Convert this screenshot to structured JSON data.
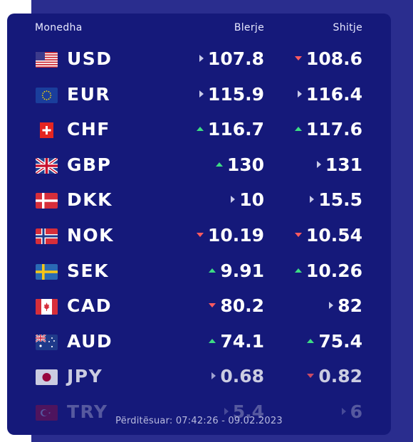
{
  "header": {
    "currency": "Monedha",
    "buy": "Blerje",
    "sell": "Shitje"
  },
  "rates": [
    {
      "code": "USD",
      "flag": "us-flag-icon",
      "buy": "107.8",
      "buy_trend": "same",
      "sell": "108.6",
      "sell_trend": "down"
    },
    {
      "code": "EUR",
      "flag": "eu-flag-icon",
      "buy": "115.9",
      "buy_trend": "same",
      "sell": "116.4",
      "sell_trend": "same"
    },
    {
      "code": "CHF",
      "flag": "ch-flag-icon",
      "buy": "116.7",
      "buy_trend": "up",
      "sell": "117.6",
      "sell_trend": "up"
    },
    {
      "code": "GBP",
      "flag": "gb-flag-icon",
      "buy": "130",
      "buy_trend": "up",
      "sell": "131",
      "sell_trend": "same"
    },
    {
      "code": "DKK",
      "flag": "dk-flag-icon",
      "buy": "10",
      "buy_trend": "same",
      "sell": "15.5",
      "sell_trend": "same"
    },
    {
      "code": "NOK",
      "flag": "no-flag-icon",
      "buy": "10.19",
      "buy_trend": "down",
      "sell": "10.54",
      "sell_trend": "down"
    },
    {
      "code": "SEK",
      "flag": "se-flag-icon",
      "buy": "9.91",
      "buy_trend": "up",
      "sell": "10.26",
      "sell_trend": "up"
    },
    {
      "code": "CAD",
      "flag": "ca-flag-icon",
      "buy": "80.2",
      "buy_trend": "down",
      "sell": "82",
      "sell_trend": "same"
    },
    {
      "code": "AUD",
      "flag": "au-flag-icon",
      "buy": "74.1",
      "buy_trend": "up",
      "sell": "75.4",
      "sell_trend": "up"
    },
    {
      "code": "JPY",
      "flag": "jp-flag-icon",
      "buy": "0.68",
      "buy_trend": "same",
      "sell": "0.82",
      "sell_trend": "down"
    },
    {
      "code": "TRY",
      "flag": "tr-flag-icon",
      "buy": "5.4",
      "buy_trend": "same",
      "sell": "6",
      "sell_trend": "same"
    }
  ],
  "footer": {
    "updated": "Përditësuar: 07:42:26 - 09.02.2023"
  },
  "colors": {
    "panel": "#15197a",
    "background": "#2a2d8e",
    "up": "#3ddc84",
    "down": "#ff5a5f",
    "same": "#c8cae8"
  }
}
